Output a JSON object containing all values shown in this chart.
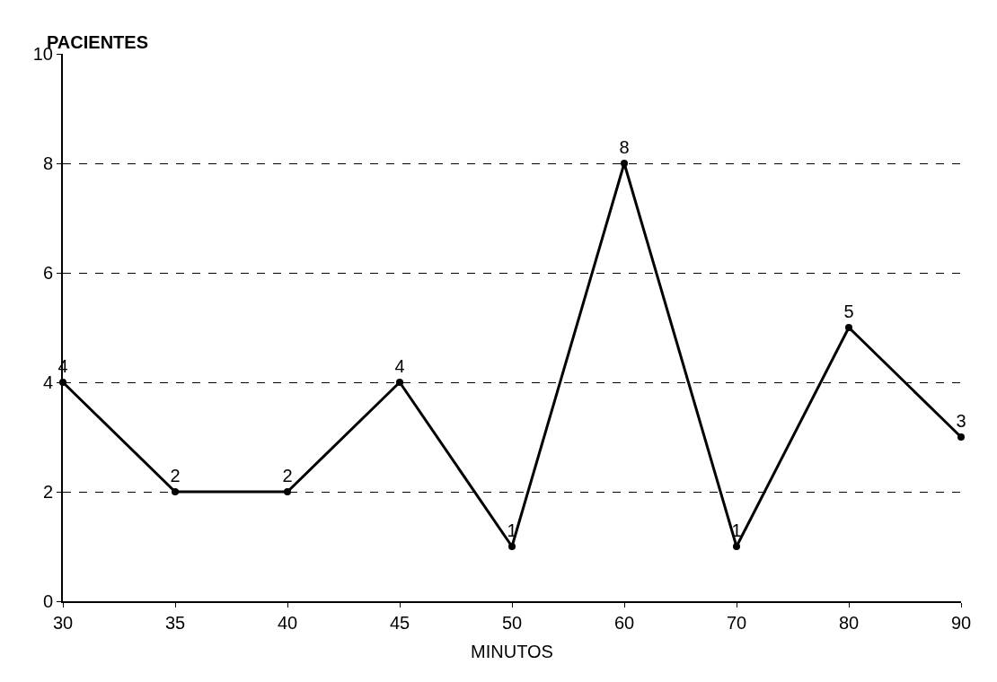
{
  "chart_data": {
    "type": "line",
    "xlabel": "MINUTOS",
    "ylabel": "PACIENTES",
    "categories": [
      "30",
      "35",
      "40",
      "45",
      "50",
      "60",
      "70",
      "80",
      "90"
    ],
    "series": [
      {
        "color": "#000000",
        "values": [
          4,
          2,
          2,
          4,
          1,
          8,
          1,
          5,
          3
        ]
      }
    ],
    "ylim": [
      0,
      10
    ],
    "yticks": [
      0,
      2,
      4,
      6,
      8,
      10
    ],
    "grid": "y",
    "data_labels": true,
    "marker": "circle",
    "line_style": "solid",
    "legend": false
  }
}
